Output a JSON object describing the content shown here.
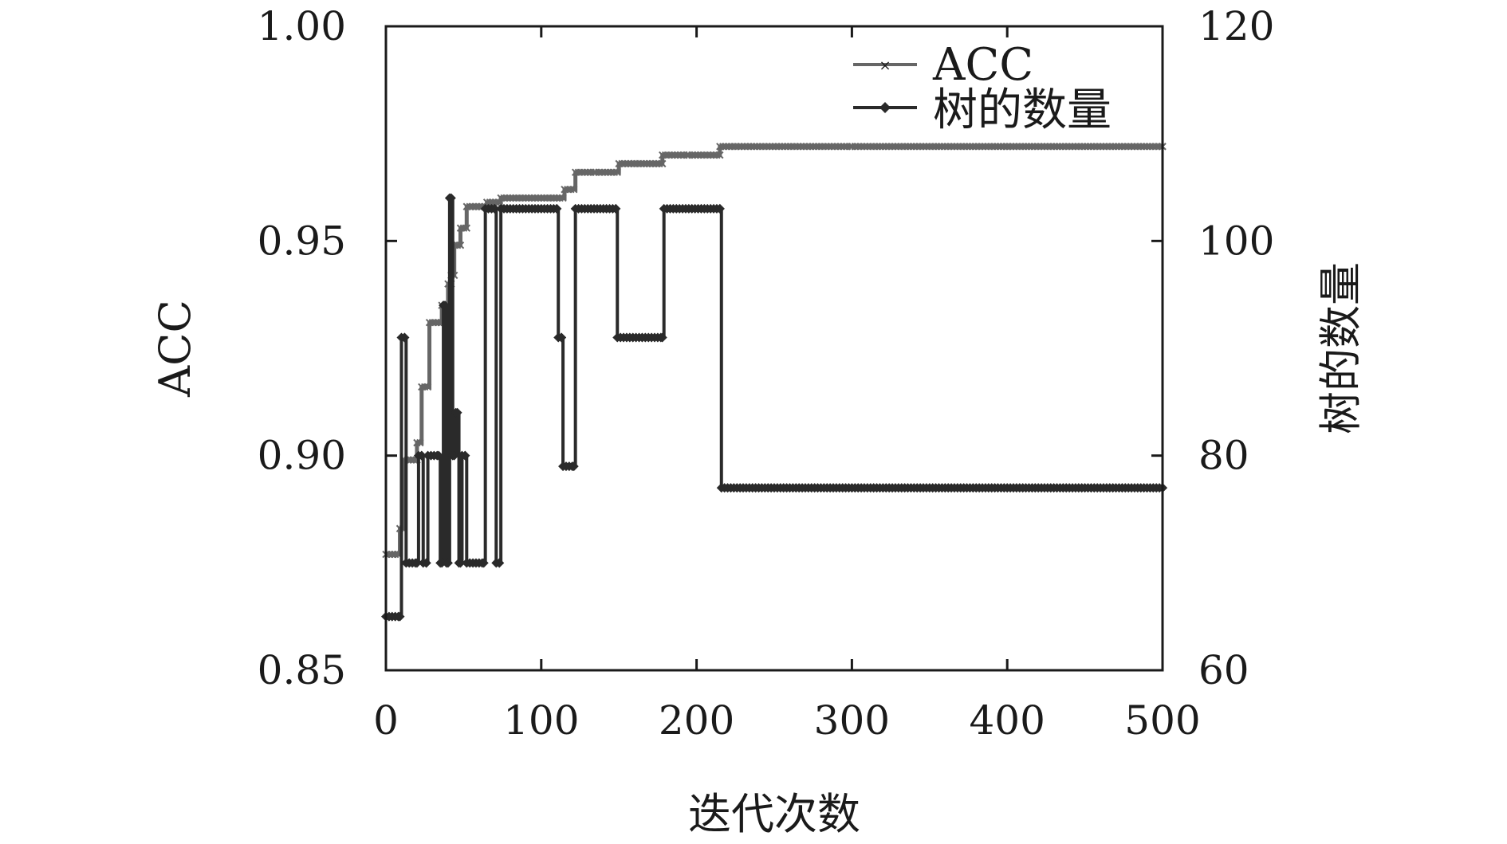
{
  "chart_data": {
    "type": "line",
    "x": {
      "label": "迭代次数",
      "range": [
        0,
        500
      ],
      "ticks": [
        0,
        100,
        200,
        300,
        400,
        500
      ],
      "tick_labels": [
        "0",
        "100",
        "200",
        "300",
        "400",
        "500"
      ]
    },
    "y_left": {
      "label": "ACC",
      "range": [
        0.85,
        1.0
      ],
      "ticks": [
        0.85,
        0.9,
        0.95,
        1.0
      ],
      "tick_labels": [
        "0.85",
        "0.90",
        "0.95",
        "1.00"
      ]
    },
    "y_right": {
      "label": "树的数量",
      "range": [
        60,
        120
      ],
      "ticks": [
        60,
        80,
        100,
        120
      ],
      "tick_labels": [
        "60",
        "80",
        "100",
        "120"
      ]
    },
    "legend": {
      "placement": "top-right"
    },
    "grid": false,
    "series": [
      {
        "name": "ACC",
        "axis": "left",
        "color": "#666666",
        "marker": "x",
        "step": true,
        "points": [
          [
            0,
            0.877
          ],
          [
            8,
            0.877
          ],
          [
            9,
            0.883
          ],
          [
            12,
            0.899
          ],
          [
            20,
            0.903
          ],
          [
            23,
            0.916
          ],
          [
            28,
            0.931
          ],
          [
            36,
            0.935
          ],
          [
            40,
            0.94
          ],
          [
            42,
            0.942
          ],
          [
            44,
            0.949
          ],
          [
            48,
            0.953
          ],
          [
            52,
            0.958
          ],
          [
            58,
            0.958
          ],
          [
            65,
            0.959
          ],
          [
            74,
            0.96
          ],
          [
            108,
            0.96
          ],
          [
            115,
            0.962
          ],
          [
            122,
            0.966
          ],
          [
            135,
            0.966
          ],
          [
            150,
            0.968
          ],
          [
            160,
            0.968
          ],
          [
            178,
            0.97
          ],
          [
            195,
            0.97
          ],
          [
            215,
            0.972
          ],
          [
            225,
            0.972
          ],
          [
            300,
            0.972
          ],
          [
            400,
            0.972
          ],
          [
            500,
            0.972
          ]
        ]
      },
      {
        "name": "树的数量",
        "axis": "right",
        "color": "#2a2a2a",
        "marker": "diamond",
        "step": true,
        "points": [
          [
            0,
            65
          ],
          [
            9,
            65
          ],
          [
            10,
            91
          ],
          [
            12,
            91
          ],
          [
            13,
            70
          ],
          [
            20,
            70
          ],
          [
            21,
            80
          ],
          [
            23,
            80
          ],
          [
            24,
            70
          ],
          [
            26,
            70
          ],
          [
            27,
            80
          ],
          [
            34,
            80
          ],
          [
            35,
            70
          ],
          [
            36,
            70
          ],
          [
            37,
            94
          ],
          [
            38,
            94
          ],
          [
            39,
            70
          ],
          [
            40,
            70
          ],
          [
            41,
            104
          ],
          [
            42,
            104
          ],
          [
            43,
            80
          ],
          [
            44,
            80
          ],
          [
            45,
            84
          ],
          [
            46,
            84
          ],
          [
            47,
            70
          ],
          [
            48,
            70
          ],
          [
            49,
            80
          ],
          [
            51,
            80
          ],
          [
            52,
            70
          ],
          [
            63,
            70
          ],
          [
            64,
            103
          ],
          [
            70,
            103
          ],
          [
            71,
            70
          ],
          [
            73,
            70
          ],
          [
            74,
            103
          ],
          [
            110,
            103
          ],
          [
            111,
            91
          ],
          [
            113,
            91
          ],
          [
            114,
            79
          ],
          [
            121,
            79
          ],
          [
            122,
            103
          ],
          [
            148,
            103
          ],
          [
            149,
            91
          ],
          [
            178,
            91
          ],
          [
            179,
            103
          ],
          [
            215,
            103
          ],
          [
            216,
            77
          ],
          [
            500,
            77
          ]
        ]
      }
    ]
  }
}
